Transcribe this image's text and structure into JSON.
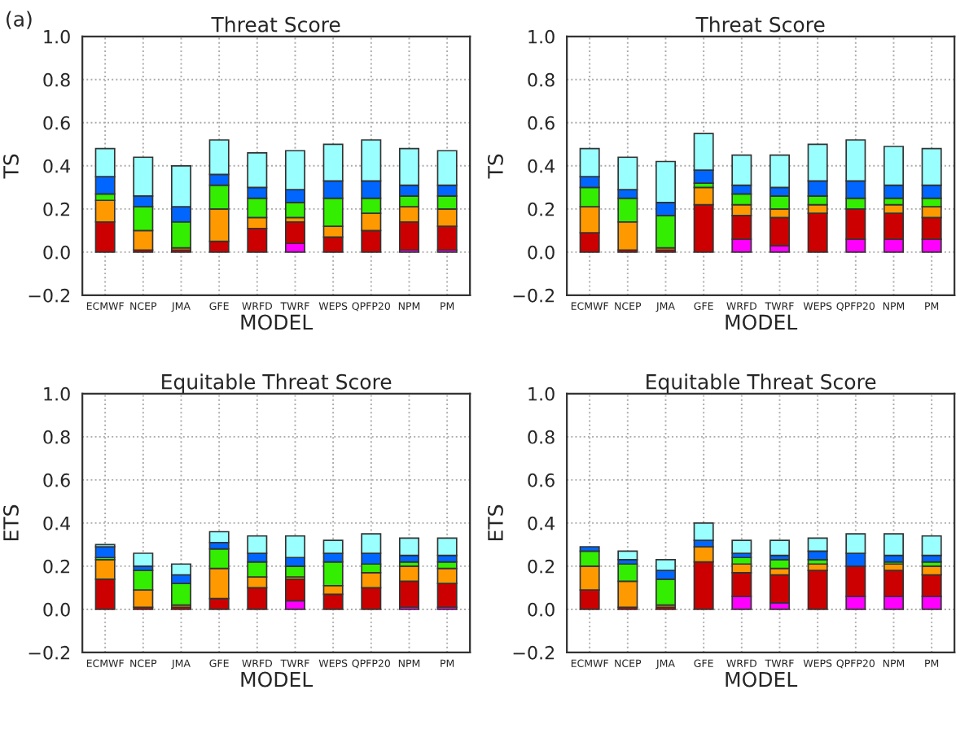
{
  "chart_data": [
    {
      "type": "bar",
      "stacked": true,
      "title": "Threat Score",
      "xlabel": "MODEL",
      "ylabel": "TS",
      "annotations": [
        "(a)"
      ],
      "categories": [
        "ECMWF",
        "NCEP",
        "JMA",
        "GFE",
        "WRFD",
        "TWRF",
        "WEPS",
        "QPFP20",
        "NPM",
        "PM"
      ],
      "ylim": [
        -0.2,
        1.0
      ],
      "yticks": [
        {
          "value": -0.2,
          "label": "−0.2"
        },
        {
          "value": 0,
          "label": "0.0"
        },
        {
          "value": 0.2,
          "label": "0.2"
        },
        {
          "value": 0.4,
          "label": "0.4"
        },
        {
          "value": 0.6,
          "label": "0.6"
        },
        {
          "value": 0.8,
          "label": "0.8"
        },
        {
          "value": 1,
          "label": "1.0"
        }
      ],
      "grid": true,
      "series": [
        {
          "color": "#ff00ff",
          "values": [
            0,
            0,
            0,
            0,
            0,
            0.04,
            0,
            0,
            0.01,
            0.01
          ]
        },
        {
          "color": "#cc0000",
          "values": [
            0.14,
            0.01,
            0.01,
            0.05,
            0.11,
            0.1,
            0.07,
            0.1,
            0.13,
            0.11
          ]
        },
        {
          "color": "#ff9900",
          "values": [
            0.1,
            0.09,
            0.01,
            0.15,
            0.05,
            0.02,
            0.05,
            0.08,
            0.07,
            0.08
          ]
        },
        {
          "color": "#33ee00",
          "values": [
            0.03,
            0.11,
            0.12,
            0.11,
            0.09,
            0.07,
            0.13,
            0.07,
            0.05,
            0.06
          ]
        },
        {
          "color": "#0066ff",
          "values": [
            0.08,
            0.05,
            0.07,
            0.05,
            0.05,
            0.06,
            0.08,
            0.08,
            0.05,
            0.05
          ]
        },
        {
          "color": "#99ffff",
          "values": [
            0.13,
            0.18,
            0.19,
            0.16,
            0.16,
            0.18,
            0.17,
            0.19,
            0.17,
            0.16
          ]
        }
      ]
    },
    {
      "type": "bar",
      "stacked": true,
      "title": "Threat Score",
      "xlabel": "MODEL",
      "ylabel": "TS",
      "categories": [
        "ECMWF",
        "NCEP",
        "JMA",
        "GFE",
        "WRFD",
        "TWRF",
        "WEPS",
        "QPFP20",
        "NPM",
        "PM"
      ],
      "ylim": [
        -0.2,
        1.0
      ],
      "yticks": [
        {
          "value": -0.2,
          "label": "−0.2"
        },
        {
          "value": 0,
          "label": "0.0"
        },
        {
          "value": 0.2,
          "label": "0.2"
        },
        {
          "value": 0.4,
          "label": "0.4"
        },
        {
          "value": 0.6,
          "label": "0.6"
        },
        {
          "value": 0.8,
          "label": "0.8"
        },
        {
          "value": 1,
          "label": "1.0"
        }
      ],
      "grid": true,
      "series": [
        {
          "color": "#ff00ff",
          "values": [
            0,
            0,
            0,
            0,
            0.06,
            0.03,
            0,
            0.06,
            0.06,
            0.06
          ]
        },
        {
          "color": "#cc0000",
          "values": [
            0.09,
            0.01,
            0.01,
            0.22,
            0.11,
            0.13,
            0.18,
            0.14,
            0.12,
            0.1
          ]
        },
        {
          "color": "#ff9900",
          "values": [
            0.12,
            0.13,
            0.01,
            0.08,
            0.05,
            0.04,
            0.04,
            0,
            0.04,
            0.05
          ]
        },
        {
          "color": "#33ee00",
          "values": [
            0.09,
            0.11,
            0.15,
            0.02,
            0.05,
            0.06,
            0.04,
            0.05,
            0.03,
            0.04
          ]
        },
        {
          "color": "#0066ff",
          "values": [
            0.05,
            0.04,
            0.06,
            0.06,
            0.04,
            0.04,
            0.07,
            0.08,
            0.06,
            0.06
          ]
        },
        {
          "color": "#99ffff",
          "values": [
            0.13,
            0.15,
            0.19,
            0.17,
            0.14,
            0.15,
            0.17,
            0.19,
            0.18,
            0.17
          ]
        }
      ]
    },
    {
      "type": "bar",
      "stacked": true,
      "title": "Equitable Threat Score",
      "xlabel": "MODEL",
      "ylabel": "ETS",
      "categories": [
        "ECMWF",
        "NCEP",
        "JMA",
        "GFE",
        "WRFD",
        "TWRF",
        "WEPS",
        "QPFP20",
        "NPM",
        "PM"
      ],
      "ylim": [
        -0.2,
        1.0
      ],
      "yticks": [
        {
          "value": -0.2,
          "label": "−0.2"
        },
        {
          "value": 0,
          "label": "0.0"
        },
        {
          "value": 0.2,
          "label": "0.2"
        },
        {
          "value": 0.4,
          "label": "0.4"
        },
        {
          "value": 0.6,
          "label": "0.6"
        },
        {
          "value": 0.8,
          "label": "0.8"
        },
        {
          "value": 1,
          "label": "1.0"
        }
      ],
      "grid": true,
      "series": [
        {
          "color": "#ff00ff",
          "values": [
            0,
            0,
            0,
            0,
            0,
            0.04,
            0,
            0,
            0.01,
            0.01
          ]
        },
        {
          "color": "#cc0000",
          "values": [
            0.14,
            0.01,
            0.01,
            0.05,
            0.1,
            0.1,
            0.07,
            0.1,
            0.12,
            0.11
          ]
        },
        {
          "color": "#ff9900",
          "values": [
            0.09,
            0.08,
            0.01,
            0.14,
            0.05,
            0.01,
            0.04,
            0.07,
            0.07,
            0.07
          ]
        },
        {
          "color": "#33ee00",
          "values": [
            0.01,
            0.09,
            0.1,
            0.09,
            0.07,
            0.05,
            0.11,
            0.04,
            0.02,
            0.03
          ]
        },
        {
          "color": "#0066ff",
          "values": [
            0.05,
            0.02,
            0.04,
            0.03,
            0.04,
            0.04,
            0.04,
            0.05,
            0.03,
            0.03
          ]
        },
        {
          "color": "#99ffff",
          "values": [
            0.01,
            0.06,
            0.05,
            0.05,
            0.08,
            0.1,
            0.06,
            0.09,
            0.08,
            0.08
          ]
        }
      ]
    },
    {
      "type": "bar",
      "stacked": true,
      "title": "Equitable Threat Score",
      "xlabel": "MODEL",
      "ylabel": "ETS",
      "categories": [
        "ECMWF",
        "NCEP",
        "JMA",
        "GFE",
        "WRFD",
        "TWRF",
        "WEPS",
        "QPFP20",
        "NPM",
        "PM"
      ],
      "ylim": [
        -0.2,
        1.0
      ],
      "yticks": [
        {
          "value": -0.2,
          "label": "−0.2"
        },
        {
          "value": 0,
          "label": "0.0"
        },
        {
          "value": 0.2,
          "label": "0.2"
        },
        {
          "value": 0.4,
          "label": "0.4"
        },
        {
          "value": 0.6,
          "label": "0.6"
        },
        {
          "value": 0.8,
          "label": "0.8"
        },
        {
          "value": 1,
          "label": "1.0"
        }
      ],
      "grid": true,
      "series": [
        {
          "color": "#ff00ff",
          "values": [
            0,
            0,
            0,
            0,
            0.06,
            0.03,
            0,
            0.06,
            0.06,
            0.06
          ]
        },
        {
          "color": "#cc0000",
          "values": [
            0.09,
            0.01,
            0.01,
            0.22,
            0.11,
            0.13,
            0.18,
            0.14,
            0.12,
            0.1
          ]
        },
        {
          "color": "#ff9900",
          "values": [
            0.11,
            0.12,
            0.01,
            0.07,
            0.04,
            0.03,
            0.03,
            0,
            0.03,
            0.04
          ]
        },
        {
          "color": "#33ee00",
          "values": [
            0.07,
            0.08,
            0.12,
            0,
            0.03,
            0.04,
            0.02,
            0,
            0.01,
            0.02
          ]
        },
        {
          "color": "#0066ff",
          "values": [
            0.02,
            0.02,
            0.04,
            0.03,
            0.02,
            0.02,
            0.04,
            0.06,
            0.03,
            0.03
          ]
        },
        {
          "color": "#99ffff",
          "values": [
            0,
            0.04,
            0.05,
            0.08,
            0.06,
            0.07,
            0.06,
            0.09,
            0.1,
            0.09
          ]
        }
      ]
    }
  ]
}
